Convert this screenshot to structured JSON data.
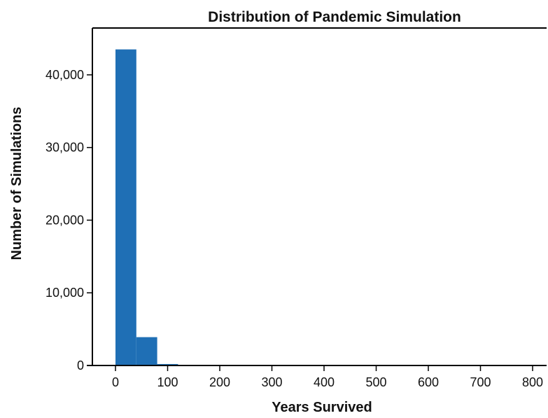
{
  "chart_data": {
    "type": "bar",
    "title": "Distribution of Pandemic Simulation",
    "xlabel": "Years Survived",
    "ylabel": "Number of Simulations",
    "xlim": [
      -25,
      820
    ],
    "ylim": [
      0,
      45000
    ],
    "x_ticks": [
      0,
      100,
      200,
      300,
      400,
      500,
      600,
      700,
      800
    ],
    "x_tick_labels": [
      "0",
      "100",
      "200",
      "300",
      "400",
      "500",
      "600",
      "700",
      "800"
    ],
    "y_ticks": [
      0,
      10000,
      20000,
      30000,
      40000
    ],
    "y_tick_labels": [
      "0",
      "10,000",
      "20,000",
      "30,000",
      "40,000"
    ],
    "bin_width": 40,
    "bins": [
      {
        "start": 0,
        "end": 40,
        "count": 43500
      },
      {
        "start": 40,
        "end": 80,
        "count": 3900
      },
      {
        "start": 80,
        "end": 120,
        "count": 200
      }
    ],
    "color": "#1f6fb5",
    "grid": false,
    "legend": "none"
  }
}
